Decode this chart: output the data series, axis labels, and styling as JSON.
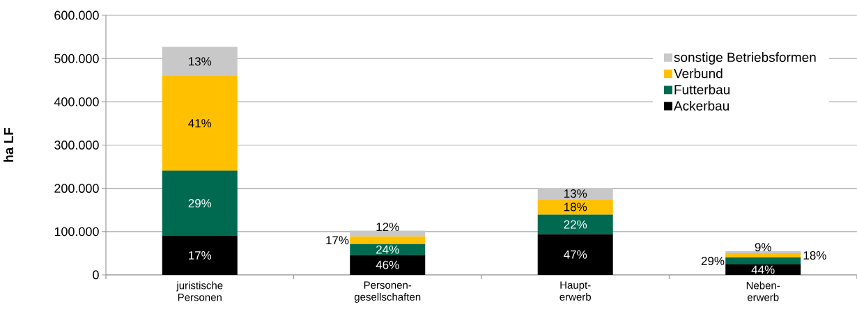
{
  "chart_data": {
    "type": "bar",
    "stacked": true,
    "ylabel": "ha LF",
    "categories": [
      "juristische Personen",
      "Personen-gesellschaften",
      "Haupt-erwerb",
      "Neben-erwerb"
    ],
    "series": [
      {
        "name": "Ackerbau",
        "color": "#000000",
        "values": [
          90000,
          46000,
          94000,
          24000
        ]
      },
      {
        "name": "Futterbau",
        "color": "#006a50",
        "values": [
          151000,
          25000,
          45000,
          16000
        ]
      },
      {
        "name": "Verbund",
        "color": "#ffc000",
        "values": [
          219000,
          18000,
          36000,
          10000
        ]
      },
      {
        "name": "sonstige Betriebsformen",
        "color": "#c8c8c8",
        "values": [
          67000,
          13000,
          26000,
          5000
        ]
      }
    ],
    "annotations": [
      "17%",
      "29%",
      "41%",
      "13%",
      "46%",
      "24%",
      "17%",
      "12%",
      "47%",
      "22%",
      "18%",
      "13%",
      "44%",
      "29%",
      "18%",
      "9%"
    ],
    "ylim": [
      0,
      600000
    ],
    "yticks": [
      0,
      {
        "value": 100000,
        "label": "100.000"
      },
      {
        "value": 200000,
        "label": "200.000"
      },
      {
        "value": 300000,
        "label": "300.000"
      },
      {
        "value": 400000,
        "label": "400.000"
      },
      {
        "value": 500000,
        "label": "500.000"
      },
      {
        "value": 600000,
        "label": "600.000"
      }
    ],
    "grid": "y",
    "legend": "top right"
  }
}
